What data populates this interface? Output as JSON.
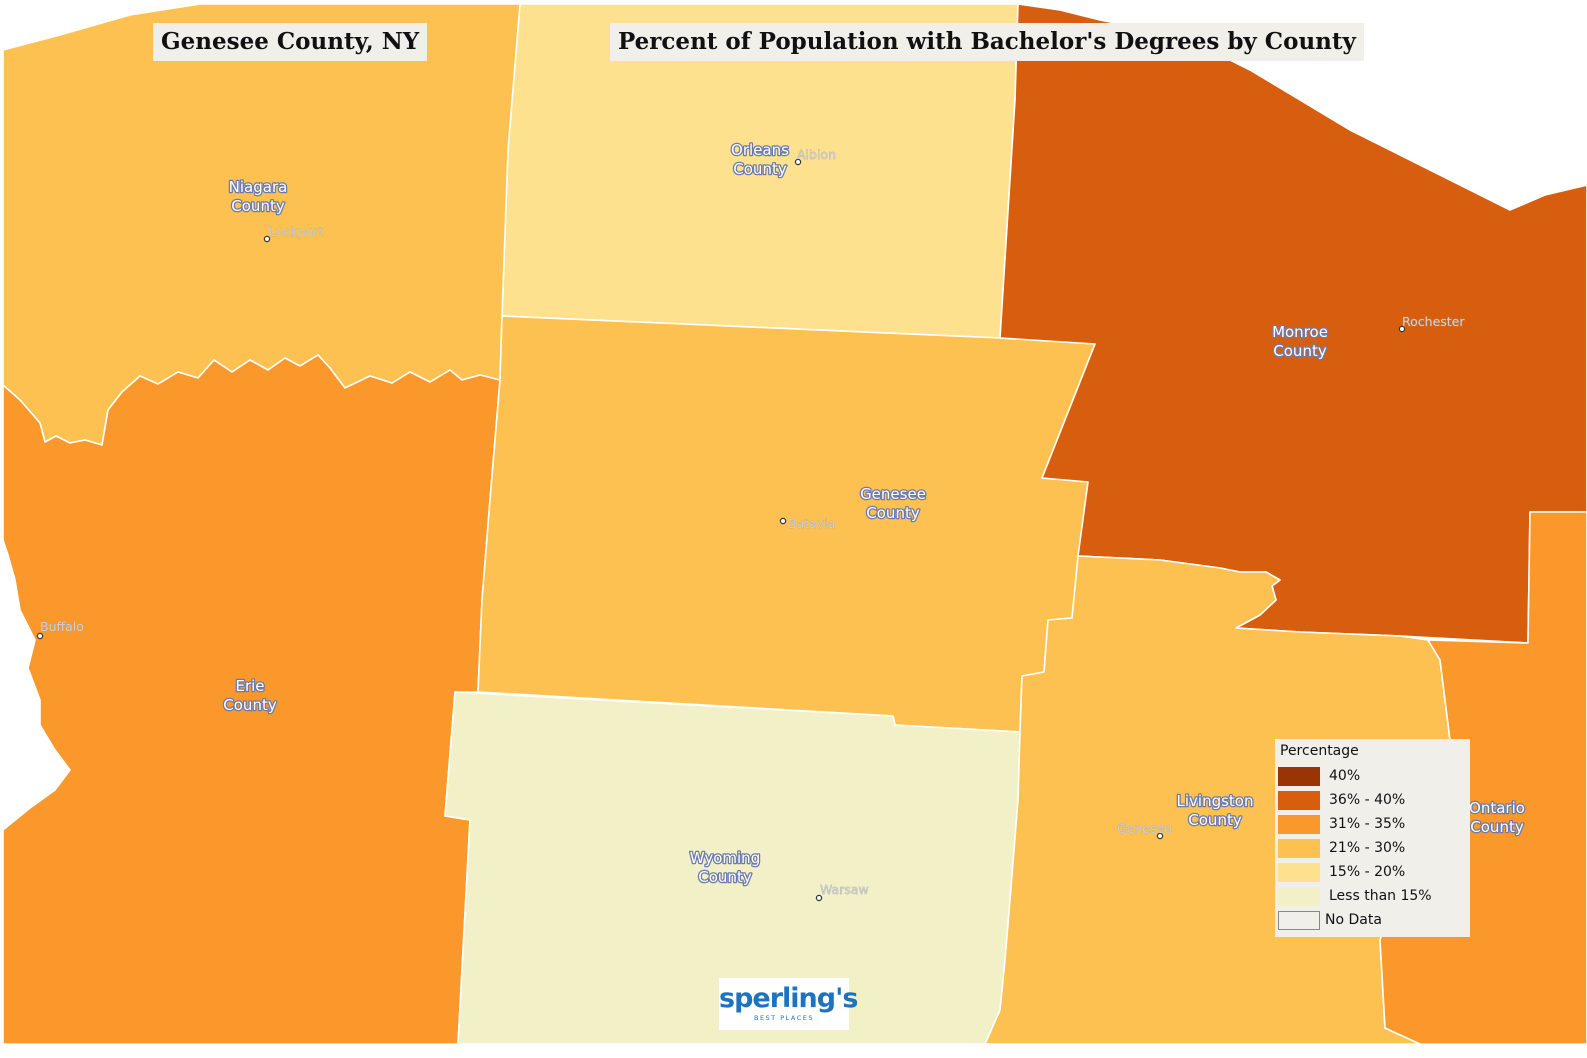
{
  "map_title": "Genesee County, NY",
  "map_subtitle": "Percent of Population with Bachelor's Degrees by County",
  "counties": [
    {
      "name_line1": "Niagara",
      "name_line2": "County",
      "category": "21% - 30%",
      "color": "#fdc151"
    },
    {
      "name_line1": "Orleans",
      "name_line2": "County",
      "category": "15% - 20%",
      "color": "#fde18e"
    },
    {
      "name_line1": "Monroe",
      "name_line2": "County",
      "category": "36% - 40%",
      "color": "#d85e0f"
    },
    {
      "name_line1": "Erie",
      "name_line2": "County",
      "category": "31% - 35%",
      "color": "#fb982b"
    },
    {
      "name_line1": "Genesee",
      "name_line2": "County",
      "category": "21% - 30%",
      "color": "#fdc151"
    },
    {
      "name_line1": "Wyoming",
      "name_line2": "County",
      "category": "Less than 15%",
      "color": "#f1f0c6"
    },
    {
      "name_line1": "Livingston",
      "name_line2": "County",
      "category": "21% - 30%",
      "color": "#fdc151"
    },
    {
      "name_line1": "Ontario",
      "name_line2": "County",
      "category": "31% - 35%",
      "color": "#fb982b"
    }
  ],
  "cities": [
    "Lockport",
    "Albion",
    "Rochester",
    "Batavia",
    "Buffalo",
    "Warsaw",
    "Geneseo"
  ],
  "legend": {
    "title": "Percentage",
    "items": [
      {
        "label": "40%",
        "color": "#993404"
      },
      {
        "label": "36% - 40%",
        "color": "#d85e0f"
      },
      {
        "label": "31% - 35%",
        "color": "#fb982b"
      },
      {
        "label": "21% - 30%",
        "color": "#fdc151"
      },
      {
        "label": "15% - 20%",
        "color": "#fde18e"
      },
      {
        "label": "Less than 15%",
        "color": "#f1f0c6"
      },
      {
        "label": "No Data",
        "color": "#f1efea"
      }
    ]
  },
  "logo": {
    "word": "sperling's",
    "tagline": "BEST PLACES"
  },
  "colors": {
    "water": "#ffffff",
    "label_halo": "#6e7aa8",
    "panel_background": "#f1efea"
  }
}
